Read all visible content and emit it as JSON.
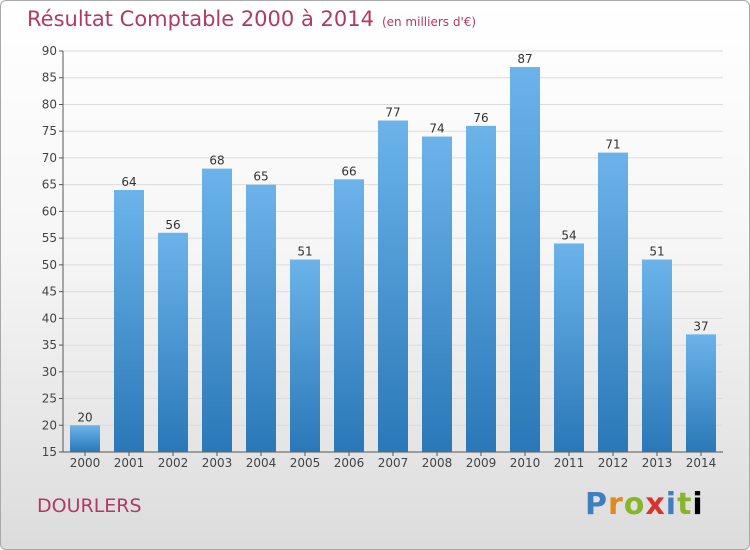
{
  "title": "Résultat Comptable 2000 à 2014",
  "unit": "(en milliers d'€)",
  "place": "DOURLERS",
  "brand": "Proxiti",
  "colors": {
    "title": "#b03a66",
    "bar_light": "#6cb3ea",
    "bar_dark": "#2a78b8"
  },
  "chart_data": {
    "type": "bar",
    "title": "Résultat Comptable 2000 à 2014",
    "subtitle": "(en milliers d'€)",
    "xlabel": "",
    "ylabel": "",
    "categories": [
      "2000",
      "2001",
      "2002",
      "2003",
      "2004",
      "2005",
      "2006",
      "2007",
      "2008",
      "2009",
      "2010",
      "2011",
      "2012",
      "2013",
      "2014"
    ],
    "values": [
      20,
      64,
      56,
      68,
      65,
      51,
      66,
      77,
      74,
      76,
      87,
      54,
      71,
      51,
      37
    ],
    "ylim": [
      15,
      90
    ],
    "yticks": [
      15,
      20,
      25,
      30,
      35,
      40,
      45,
      50,
      55,
      60,
      65,
      70,
      75,
      80,
      85,
      90
    ],
    "grid": true
  }
}
